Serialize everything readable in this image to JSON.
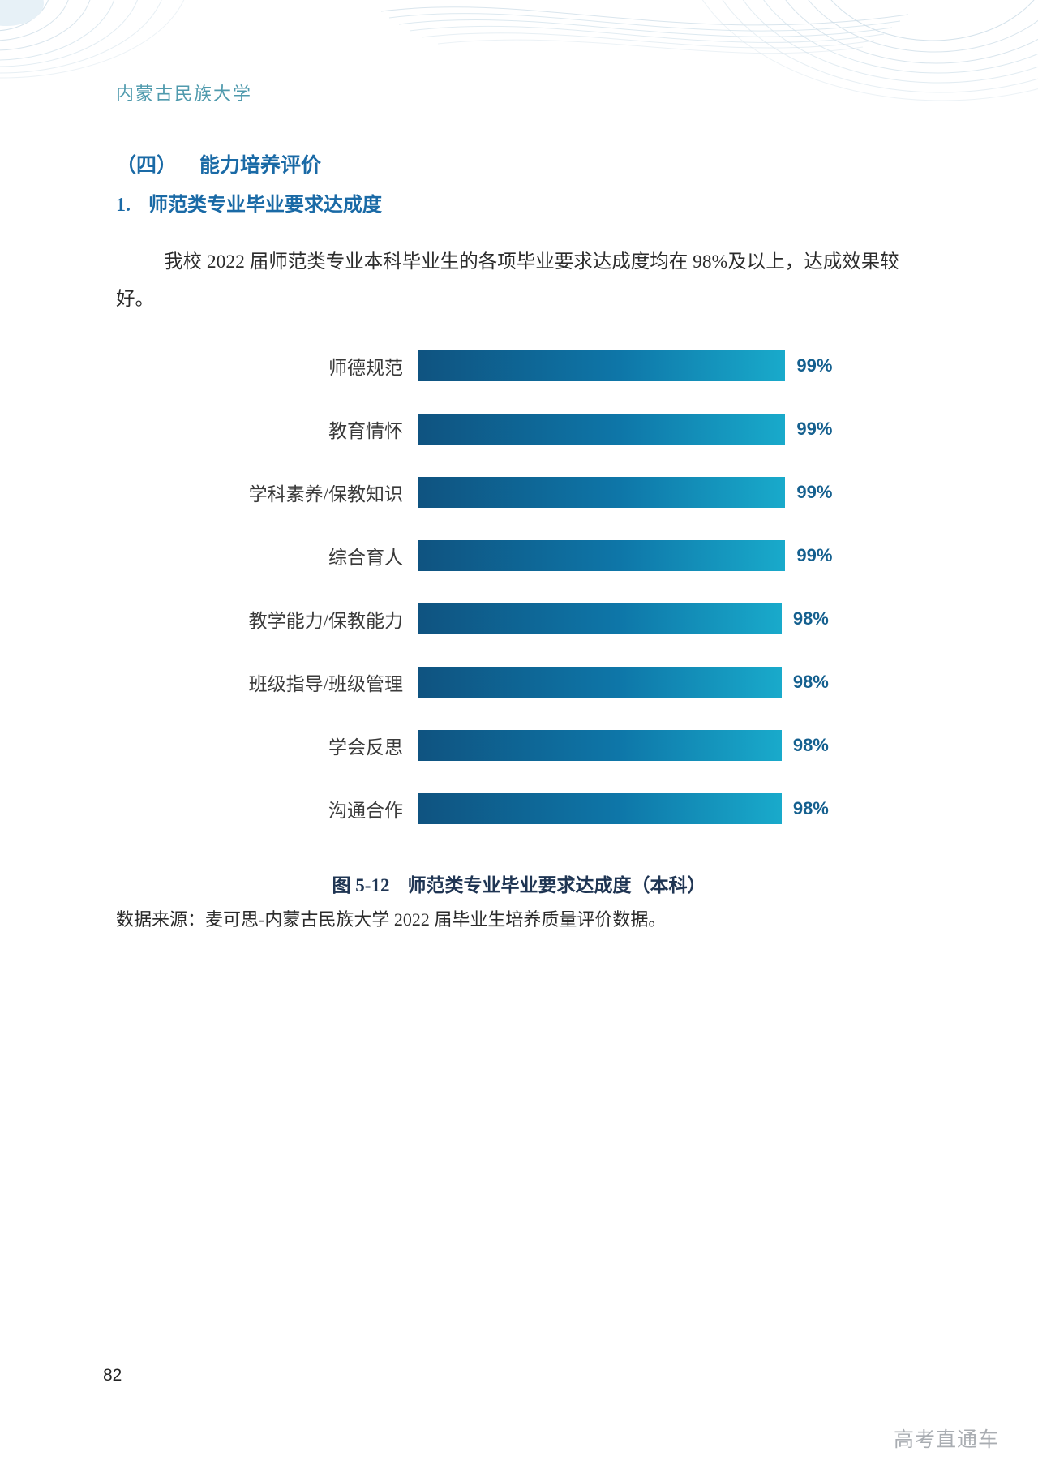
{
  "page": {
    "header": "内蒙古民族大学",
    "page_number": "82",
    "watermark": "高考直通车"
  },
  "content": {
    "section_number": "（四）",
    "section_title": "能力培养评价",
    "subsection_number": "1.",
    "subsection_title": "师范类专业毕业要求达成度",
    "paragraph_lines": [
      "我校 2022 届师范类专业本科毕业生的各项毕业要求达成度均在 98%及以上，达成效果较",
      "好。"
    ],
    "figure_caption_prefix": "图 5-12",
    "figure_caption_title": "师范类专业毕业要求达成度（本科）",
    "data_source": "数据来源：麦可思-内蒙古民族大学 2022 届毕业生培养质量评价数据。"
  },
  "chart_data": {
    "type": "bar",
    "orientation": "horizontal",
    "title": "图 5-12 师范类专业毕业要求达成度（本科）",
    "categories": [
      "师德规范",
      "教育情怀",
      "学科素养/保教知识",
      "综合育人",
      "教学能力/保教能力",
      "班级指导/班级管理",
      "学会反思",
      "沟通合作"
    ],
    "values": [
      99,
      99,
      99,
      99,
      98,
      98,
      98,
      98
    ],
    "value_labels": [
      "99%",
      "99%",
      "99%",
      "99%",
      "98%",
      "98%",
      "98%",
      "98%"
    ],
    "xlim": [
      0,
      100
    ],
    "unit": "%",
    "grid": false,
    "legend": false,
    "bar_gradient_left": "#0f5380",
    "bar_gradient_right": "#19aacb",
    "value_label_color": "#15608f"
  },
  "colors": {
    "header_teal": "#4f9aad",
    "heading_blue": "#1a6aa6",
    "caption_navy": "#1f3553",
    "watermark_gray": "#a9adb2",
    "deco_wave": "#cfdfe9"
  }
}
